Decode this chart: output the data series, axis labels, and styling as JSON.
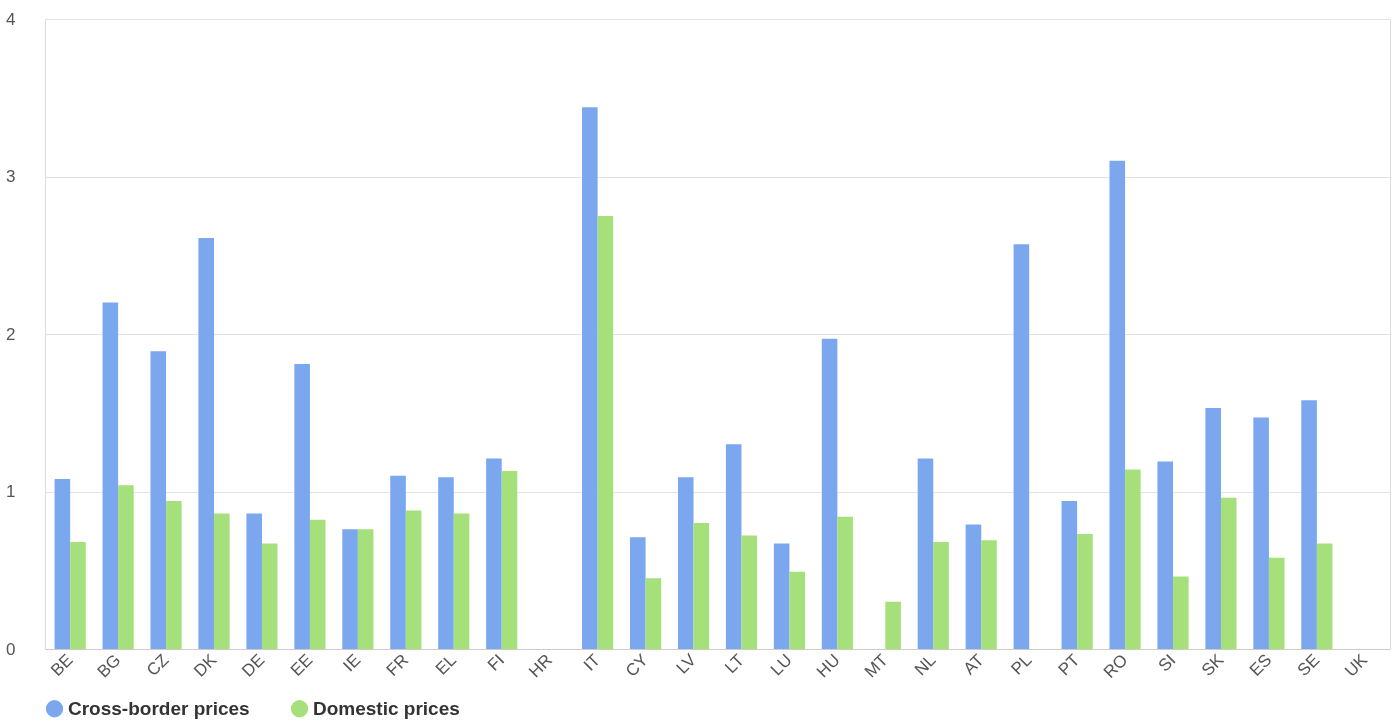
{
  "chart_data": {
    "type": "bar",
    "categories": [
      "BE",
      "BG",
      "CZ",
      "DK",
      "DE",
      "EE",
      "IE",
      "FR",
      "EL",
      "FI",
      "HR",
      "IT",
      "CY",
      "LV",
      "LT",
      "LU",
      "HU",
      "MT",
      "NL",
      "AT",
      "PL",
      "PT",
      "RO",
      "SI",
      "SK",
      "ES",
      "SE",
      "UK"
    ],
    "series": [
      {
        "name": "Cross-border prices",
        "color": "#7ba7ee",
        "values": [
          1.08,
          2.2,
          1.89,
          2.61,
          0.86,
          1.81,
          0.76,
          1.1,
          1.09,
          1.21,
          null,
          3.44,
          0.71,
          1.09,
          1.3,
          0.67,
          1.97,
          null,
          1.21,
          0.79,
          2.57,
          0.94,
          3.1,
          1.19,
          1.53,
          1.47,
          1.58,
          null
        ]
      },
      {
        "name": "Domestic prices",
        "color": "#a6e07a",
        "values": [
          0.68,
          1.04,
          0.94,
          0.86,
          0.67,
          0.82,
          0.76,
          0.88,
          0.86,
          1.13,
          null,
          2.75,
          0.45,
          0.8,
          0.72,
          0.49,
          0.84,
          0.3,
          0.68,
          0.69,
          null,
          0.73,
          1.14,
          0.46,
          0.96,
          0.58,
          0.67,
          null
        ]
      }
    ],
    "ylim": [
      0,
      4
    ],
    "yticks": [
      0,
      1,
      2,
      3,
      4
    ],
    "grid": "y",
    "legend": "bottom"
  }
}
